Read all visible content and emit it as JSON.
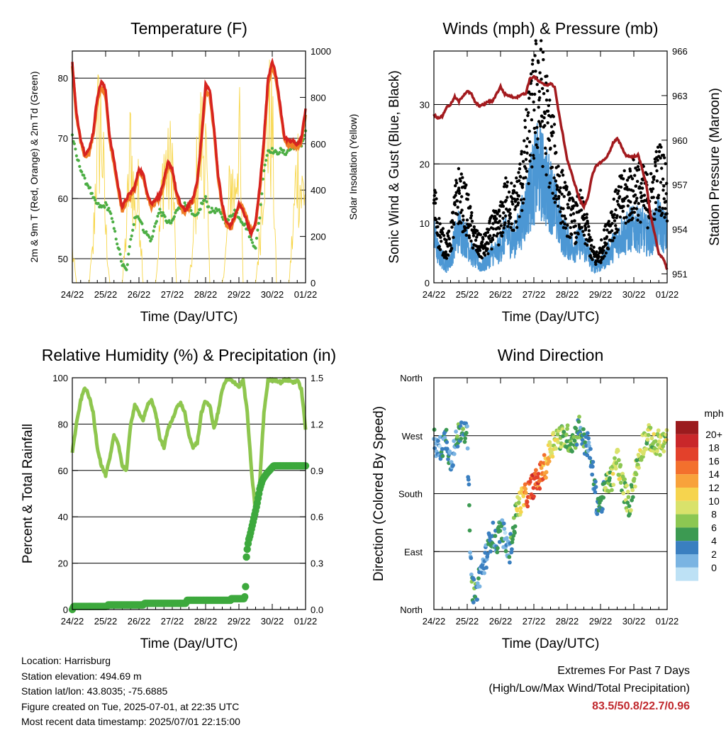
{
  "chart_data": [
    {
      "type": "line",
      "title": "Temperature (F)",
      "xlabel": "Time (Day/UTC)",
      "ylabel": "2m & 9m T (Red, Orange) & 2m Td (Green)",
      "y2label": "Solar Insolation (Yellow)",
      "x_ticks": [
        "24/22",
        "25/22",
        "26/22",
        "27/22",
        "28/22",
        "29/22",
        "30/22",
        "01/22"
      ],
      "y_ticks": [
        50,
        60,
        70,
        80
      ],
      "y2_ticks": [
        0,
        200,
        400,
        600,
        800,
        1000
      ],
      "ylim": [
        46,
        84.5
      ],
      "y2lim": [
        0,
        1000
      ],
      "grid": true,
      "x_hours": [
        0,
        3,
        6,
        9,
        12,
        15,
        18,
        21,
        24,
        27,
        30,
        33,
        36,
        39,
        42,
        45,
        48,
        51,
        54,
        57,
        60,
        63,
        66,
        69,
        72,
        75,
        78,
        81,
        84,
        87,
        90,
        93,
        96,
        99,
        102,
        105,
        108,
        111,
        114,
        117,
        120,
        123,
        126,
        129,
        132,
        135,
        138,
        141,
        144,
        147,
        150,
        153,
        156,
        159,
        162,
        165,
        168
      ],
      "series": [
        {
          "name": "2m T",
          "color": "#d7231f",
          "values": [
            82.5,
            74,
            70,
            67.5,
            68,
            71,
            77,
            79.5,
            78,
            70,
            66.5,
            62,
            58.5,
            60,
            61,
            62,
            65,
            64,
            61,
            59,
            60,
            60.5,
            63,
            66,
            65,
            61,
            59,
            58,
            59,
            60,
            63,
            70,
            79,
            78,
            72,
            64,
            59,
            56,
            55.5,
            57,
            59,
            58,
            56,
            54,
            56,
            62,
            70,
            80,
            83,
            80,
            75,
            70,
            69.5,
            69.5,
            69,
            70,
            75
          ]
        },
        {
          "name": "9m T",
          "color": "#f07e26",
          "values": [
            82,
            73.5,
            69.5,
            67,
            67.5,
            70.5,
            76,
            78.5,
            77,
            69.5,
            66,
            61.5,
            58,
            59.5,
            60.5,
            61.5,
            64.5,
            63.5,
            60.5,
            58.5,
            59.5,
            60,
            62.5,
            65.5,
            64.5,
            60.5,
            58.5,
            57.5,
            58.5,
            59.5,
            62.5,
            69.5,
            78,
            77,
            71.5,
            63.5,
            58.5,
            55.5,
            55,
            56.5,
            59,
            58.5,
            56.5,
            54.5,
            55.5,
            61.5,
            69.5,
            79,
            82,
            79.5,
            74.5,
            69.5,
            69,
            69,
            68.5,
            69.5,
            74
          ]
        },
        {
          "name": "2m Td",
          "color": "#4cae44",
          "values": [
            70.5,
            67,
            65,
            63,
            62,
            60,
            59,
            58.5,
            59,
            58,
            55,
            52,
            49,
            48,
            53,
            57,
            57,
            55,
            54,
            53,
            56,
            58,
            57,
            56,
            56,
            58,
            58.5,
            59,
            58.5,
            57,
            57,
            59,
            60,
            58,
            58,
            58,
            57,
            56,
            57,
            58,
            57,
            56,
            55,
            53,
            52,
            57,
            65,
            68,
            68,
            67.5,
            68,
            67.5,
            68,
            68.5,
            69,
            69,
            71
          ]
        },
        {
          "name": "Solar Insolation",
          "color": "#f7d64a",
          "axis": "y2",
          "values": [
            180,
            0,
            0,
            0,
            0,
            200,
            850,
            900,
            300,
            0,
            0,
            0,
            0,
            300,
            800,
            400,
            500,
            0,
            0,
            0,
            0,
            300,
            700,
            600,
            700,
            0,
            0,
            0,
            0,
            200,
            650,
            820,
            750,
            0,
            0,
            0,
            0,
            200,
            600,
            500,
            900,
            0,
            0,
            0,
            0,
            250,
            750,
            900,
            850,
            0,
            0,
            0,
            0,
            300,
            700,
            500,
            550
          ]
        }
      ]
    },
    {
      "type": "line",
      "title": "Winds (mph) & Pressure (mb)",
      "xlabel": "Time (Day/UTC)",
      "ylabel": "Sonic Wind & Gust (Blue, Black)",
      "y2label": "Station Pressure (Maroon)",
      "x_ticks": [
        "24/22",
        "25/22",
        "26/22",
        "27/22",
        "28/22",
        "29/22",
        "30/22",
        "01/22"
      ],
      "y_ticks": [
        0,
        10,
        20,
        30
      ],
      "y2_ticks": [
        951,
        954,
        957,
        960,
        963,
        966
      ],
      "ylim": [
        0,
        39
      ],
      "y2lim": [
        950.4,
        966
      ],
      "grid": true,
      "x_hours": [
        0,
        3,
        6,
        9,
        12,
        15,
        18,
        21,
        24,
        27,
        30,
        33,
        36,
        39,
        42,
        45,
        48,
        51,
        54,
        57,
        60,
        63,
        66,
        69,
        72,
        75,
        78,
        81,
        84,
        87,
        90,
        93,
        96,
        99,
        102,
        105,
        108,
        111,
        114,
        117,
        120,
        123,
        126,
        129,
        132,
        135,
        138,
        141,
        144,
        147,
        150,
        153,
        156,
        159,
        162,
        165,
        168
      ],
      "series": [
        {
          "name": "Sonic Wind",
          "color": "#4c97d4",
          "values": [
            8,
            5,
            4,
            3,
            4,
            7,
            9,
            8,
            7,
            5,
            4,
            3,
            3,
            4,
            5,
            5,
            6,
            8,
            8,
            7,
            8,
            10,
            12,
            15,
            17,
            19,
            18,
            16,
            15,
            13,
            10,
            8,
            7,
            6,
            6,
            7,
            6,
            5,
            3,
            3,
            3,
            4,
            5,
            6,
            7,
            8,
            8,
            9,
            9,
            9,
            9,
            8,
            8,
            9,
            10,
            9,
            8
          ]
        },
        {
          "name": "Gust",
          "color": "#000000",
          "values": [
            14,
            9,
            7,
            6,
            7,
            12,
            15,
            13,
            12,
            9,
            7,
            6,
            6,
            7,
            9,
            9,
            10,
            13,
            14,
            12,
            14,
            17,
            21,
            26,
            29,
            33,
            30,
            27,
            23,
            20,
            16,
            14,
            12,
            11,
            10,
            12,
            10,
            8,
            5,
            4,
            5,
            7,
            9,
            11,
            12,
            14,
            14,
            15,
            16,
            16,
            15,
            14,
            14,
            16,
            18,
            17,
            15
          ]
        },
        {
          "name": "Station Pressure",
          "color": "#a31a1e",
          "axis": "y2",
          "values": [
            961.7,
            961.5,
            961.6,
            962.2,
            962.4,
            962.9,
            962.6,
            963,
            963.3,
            963.1,
            962.5,
            962.3,
            962.4,
            962.6,
            962.6,
            963.1,
            963.6,
            963.1,
            963,
            962.9,
            962.9,
            963.1,
            963.1,
            964.1,
            964.3,
            964,
            963.8,
            963.7,
            963.8,
            963.6,
            961.8,
            960.3,
            958.7,
            957.8,
            956.9,
            956,
            955.5,
            956.2,
            957.6,
            958.3,
            958.5,
            958.7,
            959.1,
            959.8,
            960.1,
            959.6,
            959,
            958.9,
            958.9,
            959,
            958.1,
            957,
            955,
            953.7,
            952.3,
            952.1,
            951.3
          ]
        }
      ]
    },
    {
      "type": "line",
      "title": "Relative Humidity (%) & Precipitation (in)",
      "xlabel": "Time (Day/UTC)",
      "ylabel": "Percent & Total Rainfall",
      "x_ticks": [
        "24/22",
        "25/22",
        "26/22",
        "27/22",
        "28/22",
        "29/22",
        "30/22",
        "01/22"
      ],
      "y_ticks": [
        0,
        20,
        40,
        60,
        80,
        100
      ],
      "y2_ticks": [
        "0.0",
        "0.3",
        "0.6",
        "0.9",
        "1.2",
        "1.5"
      ],
      "ylim": [
        0,
        100
      ],
      "y2lim": [
        0,
        1.5
      ],
      "grid": true,
      "x_hours": [
        0,
        3,
        6,
        9,
        12,
        15,
        18,
        21,
        24,
        27,
        30,
        33,
        36,
        39,
        42,
        45,
        48,
        51,
        54,
        57,
        60,
        63,
        66,
        69,
        72,
        75,
        78,
        81,
        84,
        87,
        90,
        93,
        96,
        99,
        102,
        105,
        108,
        111,
        114,
        117,
        120,
        123,
        126,
        129,
        132,
        135,
        138,
        141,
        144,
        147,
        150,
        153,
        156,
        159,
        162,
        165,
        168
      ],
      "series": [
        {
          "name": "Relative Humidity",
          "color": "#8ec64e",
          "values": [
            68,
            80,
            90,
            96,
            92,
            85,
            70,
            62,
            58,
            65,
            75,
            72,
            62,
            60,
            80,
            88,
            85,
            82,
            88,
            90,
            85,
            74,
            70,
            78,
            82,
            87,
            89,
            85,
            75,
            70,
            72,
            85,
            90,
            88,
            78,
            85,
            95,
            99,
            99,
            98,
            96,
            99,
            85,
            60,
            42,
            55,
            85,
            99,
            99,
            99,
            98,
            99,
            99,
            98,
            99,
            95,
            78
          ]
        },
        {
          "name": "Total Precipitation",
          "color": "#3da93d",
          "axis": "y2",
          "x": [
            0,
            1,
            25,
            25.5,
            51,
            52,
            82,
            82.5,
            114,
            114.5,
            124,
            124.5,
            125,
            125.4,
            126,
            127,
            128,
            129,
            131,
            133,
            135,
            137,
            140,
            142,
            145,
            168
          ],
          "values": [
            0,
            0.02,
            0.02,
            0.03,
            0.03,
            0.04,
            0.04,
            0.06,
            0.06,
            0.07,
            0.07,
            0.1,
            0.18,
            0.34,
            0.39,
            0.45,
            0.48,
            0.52,
            0.6,
            0.68,
            0.78,
            0.84,
            0.88,
            0.9,
            0.93,
            0.93
          ]
        }
      ]
    },
    {
      "type": "scatter",
      "title": "Wind Direction",
      "xlabel": "Time (Day/UTC)",
      "ylabel": "Direction (Colored By Speed)",
      "x_ticks": [
        "24/22",
        "25/22",
        "26/22",
        "27/22",
        "28/22",
        "29/22",
        "30/22",
        "01/22"
      ],
      "y_ticks": [
        "North",
        "East",
        "South",
        "West",
        "North"
      ],
      "ylim": [
        0,
        360
      ],
      "grid": true,
      "legend": {
        "title": "mph",
        "labels": [
          "20+",
          "18",
          "16",
          "14",
          "12",
          "10",
          "8",
          "6",
          "4",
          "2",
          "0"
        ],
        "colors": [
          "#9b1b1e",
          "#c9272a",
          "#e3412b",
          "#f3702d",
          "#f8a23b",
          "#f6d44e",
          "#d9e26b",
          "#8cc752",
          "#3c9a52",
          "#3a7fc0",
          "#7ab4e2",
          "#bde1f5"
        ]
      },
      "x_hours": [
        0,
        3,
        6,
        9,
        12,
        15,
        18,
        21,
        24,
        27,
        30,
        33,
        36,
        39,
        42,
        45,
        48,
        51,
        54,
        57,
        60,
        63,
        66,
        69,
        72,
        75,
        78,
        81,
        84,
        87,
        90,
        93,
        96,
        99,
        102,
        105,
        108,
        111,
        114,
        117,
        120,
        123,
        126,
        129,
        132,
        135,
        138,
        141,
        144,
        147,
        150,
        153,
        156,
        159,
        162,
        165,
        168
      ],
      "direction": [
        262,
        245,
        255,
        268,
        230,
        250,
        275,
        290,
        265,
        40,
        20,
        55,
        70,
        95,
        120,
        100,
        130,
        110,
        85,
        120,
        160,
        170,
        175,
        185,
        195,
        200,
        215,
        225,
        250,
        265,
        270,
        265,
        268,
        260,
        270,
        285,
        260,
        255,
        220,
        170,
        160,
        185,
        200,
        205,
        240,
        200,
        180,
        160,
        200,
        230,
        255,
        265,
        268,
        250,
        260,
        258,
        262
      ],
      "speed": [
        4,
        3,
        4,
        5,
        3,
        4,
        6,
        5,
        4,
        5,
        6,
        3,
        3,
        4,
        5,
        4,
        5,
        3,
        4,
        6,
        9,
        12,
        15,
        18,
        19,
        17,
        16,
        14,
        12,
        11,
        9,
        8,
        7,
        7,
        6,
        5,
        6,
        4,
        3,
        4,
        5,
        7,
        8,
        9,
        10,
        9,
        8,
        7,
        8,
        8,
        9,
        8,
        9,
        9,
        10,
        9,
        9
      ]
    }
  ],
  "station_info": [
    "Location: Harrisburg",
    "Station elevation: 494.69 m",
    "Station lat/lon: 43.8035; -75.6885",
    "Figure created on Tue, 2025-07-01, at 22:35 UTC",
    "Most recent data timestamp: 2025/07/01 22:15:00"
  ],
  "extremes": {
    "line1": "Extremes For Past 7 Days",
    "line2": "(High/Low/Max Wind/Total Precipitation)",
    "value": "83.5/50.8/22.7/0.96"
  }
}
